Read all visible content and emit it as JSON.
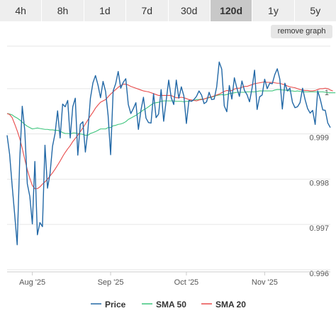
{
  "range_tabs": [
    {
      "label": "4h",
      "active": false
    },
    {
      "label": "8h",
      "active": false
    },
    {
      "label": "1d",
      "active": false
    },
    {
      "label": "7d",
      "active": false
    },
    {
      "label": "30d",
      "active": false
    },
    {
      "label": "120d",
      "active": true
    },
    {
      "label": "1y",
      "active": false
    },
    {
      "label": "5y",
      "active": false
    }
  ],
  "remove_button_label": "remove graph",
  "chart_data": {
    "type": "line",
    "xlabel": "",
    "ylabel": "",
    "x_ticks": [
      {
        "label": "Aug '25",
        "index": 10
      },
      {
        "label": "Sep '25",
        "index": 41
      },
      {
        "label": "Oct '25",
        "index": 71
      },
      {
        "label": "Nov '25",
        "index": 102
      }
    ],
    "y_ticks": [
      {
        "value": 0.996,
        "label": "0.996"
      },
      {
        "value": 0.997,
        "label": "0.997"
      },
      {
        "value": 0.998,
        "label": "0.998"
      },
      {
        "value": 0.999,
        "label": "0.999"
      },
      {
        "value": 1.0,
        "label": "1"
      }
    ],
    "ylim": [
      0.99595,
      1.00105
    ],
    "grid": true,
    "legend_position": "bottom",
    "series": [
      {
        "name": "Price",
        "color": "#2268a6",
        "values": [
          0.99897,
          0.99855,
          0.99786,
          0.99722,
          0.99655,
          0.99842,
          0.99961,
          0.99908,
          0.9979,
          0.99762,
          0.99701,
          0.99839,
          0.99677,
          0.99704,
          0.99695,
          0.99875,
          0.9978,
          0.99812,
          0.99873,
          0.99901,
          0.99951,
          0.99891,
          0.99966,
          0.9996,
          0.99974,
          0.99891,
          0.9996,
          0.99979,
          0.99853,
          0.99921,
          0.99927,
          0.9986,
          0.99908,
          0.99979,
          1.00013,
          1.00029,
          1.00008,
          0.9998,
          1.00016,
          0.99994,
          0.99941,
          0.99854,
          0.99995,
          1.00011,
          1.00038,
          1.00001,
          1.00014,
          1.00022,
          0.99965,
          0.99945,
          0.99956,
          0.99969,
          0.9991,
          0.99952,
          0.99981,
          0.99935,
          0.99925,
          0.99924,
          0.99989,
          0.99936,
          0.99944,
          0.99998,
          0.99928,
          0.99974,
          1.00019,
          0.9998,
          0.99965,
          1.00019,
          0.99979,
          1.00004,
          0.99984,
          0.99923,
          0.99974,
          0.99972,
          0.99976,
          0.99983,
          0.99995,
          0.99986,
          0.99967,
          0.99971,
          0.99992,
          0.99976,
          0.99977,
          1.00004,
          1.00059,
          1.00043,
          0.99962,
          0.99949,
          1.00007,
          0.99977,
          1.00024,
          1.00001,
          0.99983,
          1.00017,
          0.99996,
          0.99987,
          0.99971,
          1.00001,
          1.00041,
          0.99954,
          0.99982,
          0.99986,
          1.00021,
          1.0,
          1.00012,
          1.00011,
          1.00031,
          1.00044,
          1.00021,
          0.99955,
          1.00012,
          0.99995,
          1.00001,
          0.9997,
          0.99958,
          0.9996,
          0.99969,
          1.00001,
          0.99976,
          0.99956,
          0.99946,
          0.99952,
          0.99921,
          0.99995,
          0.99977,
          0.99953,
          0.99952,
          0.99924,
          0.99914
        ]
      },
      {
        "name": "SMA 50",
        "color": "#3cc47c",
        "values": [
          0.99945,
          0.99944,
          0.99942,
          0.99938,
          0.99935,
          0.99931,
          0.99926,
          0.99921,
          0.99917,
          0.99914,
          0.99911,
          0.99912,
          0.99913,
          0.99912,
          0.99911,
          0.9991,
          0.9991,
          0.99909,
          0.99909,
          0.99908,
          0.99908,
          0.99906,
          0.99903,
          0.99901,
          0.99901,
          0.999,
          0.99902,
          0.99902,
          0.99901,
          0.999,
          0.99899,
          0.99897,
          0.99897,
          0.99901,
          0.99903,
          0.99905,
          0.99908,
          0.99911,
          0.99911,
          0.99911,
          0.99914,
          0.99914,
          0.99918,
          0.99919,
          0.99921,
          0.99922,
          0.99924,
          0.99927,
          0.99932,
          0.99935,
          0.99938,
          0.99941,
          0.99945,
          0.99949,
          0.99953,
          0.99956,
          0.9996,
          0.99964,
          0.99968,
          0.99969,
          0.9997,
          0.99972,
          0.99973,
          0.99973,
          0.99973,
          0.99973,
          0.99973,
          0.99972,
          0.99972,
          0.99972,
          0.99971,
          0.99972,
          0.99972,
          0.99973,
          0.99974,
          0.99976,
          0.99976,
          0.99977,
          0.99977,
          0.99979,
          0.9998,
          0.99981,
          0.99983,
          0.99985,
          0.99986,
          0.99987,
          0.99986,
          0.99987,
          0.99989,
          0.9999,
          0.99991,
          0.99992,
          0.99992,
          0.99992,
          0.99992,
          0.99993,
          0.99993,
          0.99993,
          0.99993,
          0.99994,
          0.99995,
          0.99995,
          0.99995,
          0.99995,
          0.99995,
          0.99995,
          0.99997,
          0.99998,
          0.99998,
          0.99997,
          0.99997,
          0.99996,
          0.99995,
          0.99995,
          0.99994,
          0.99995,
          0.99994,
          0.99993,
          0.99993,
          0.99993,
          0.99993,
          0.99993,
          0.99993,
          0.99993,
          0.99993,
          0.99993,
          0.99992,
          0.99991,
          0.99991,
          0.99991,
          0.99991
        ]
      },
      {
        "name": "SMA 20",
        "color": "#e84a4a",
        "values": [
          0.99945,
          0.99943,
          0.99936,
          0.99922,
          0.99907,
          0.9989,
          0.99868,
          0.99844,
          0.99821,
          0.99802,
          0.99786,
          0.99779,
          0.99779,
          0.99783,
          0.99789,
          0.99794,
          0.998,
          0.99807,
          0.99814,
          0.99822,
          0.99831,
          0.9984,
          0.9985,
          0.99859,
          0.99867,
          0.99874,
          0.99883,
          0.9989,
          0.99897,
          0.99905,
          0.99913,
          0.99922,
          0.99931,
          0.9994,
          0.99948,
          0.99957,
          0.99964,
          0.9997,
          0.99973,
          0.99976,
          0.99982,
          0.99988,
          0.99993,
          0.99998,
          1.00003,
          1.00007,
          1.0001,
          1.0001,
          1.00008,
          1.00005,
          1.00003,
          1.00001,
          0.99999,
          0.99997,
          0.99995,
          0.99994,
          0.99993,
          0.99991,
          0.99989,
          0.99987,
          0.99985,
          0.99985,
          0.99985,
          0.99985,
          0.99985,
          0.99985,
          0.99982,
          0.9998,
          0.9998,
          0.99981,
          0.9998,
          0.99978,
          0.99976,
          0.99975,
          0.99974,
          0.99973,
          0.99975,
          0.99976,
          0.99977,
          0.99979,
          0.99981,
          0.99982,
          0.99984,
          0.99986,
          0.99988,
          0.99991,
          0.99994,
          0.99996,
          0.99995,
          0.99996,
          0.99999,
          1.00001,
          1.00001,
          1.00003,
          1.00005,
          1.00005,
          1.00007,
          1.00009,
          1.00011,
          1.00012,
          1.00013,
          1.00014,
          1.00015,
          1.00014,
          1.00014,
          1.00014,
          1.00013,
          1.00012,
          1.00012,
          1.0001,
          1.00009,
          1.00006,
          1.00004,
          1.00003,
          1.00002,
          1.0,
          0.99998,
          0.99997,
          0.99996,
          0.99996,
          0.99995,
          0.99995,
          0.99996,
          0.99998,
          1.0,
          1.0,
          1.00001,
          1.0,
          0.99997,
          0.99995
        ]
      }
    ]
  }
}
